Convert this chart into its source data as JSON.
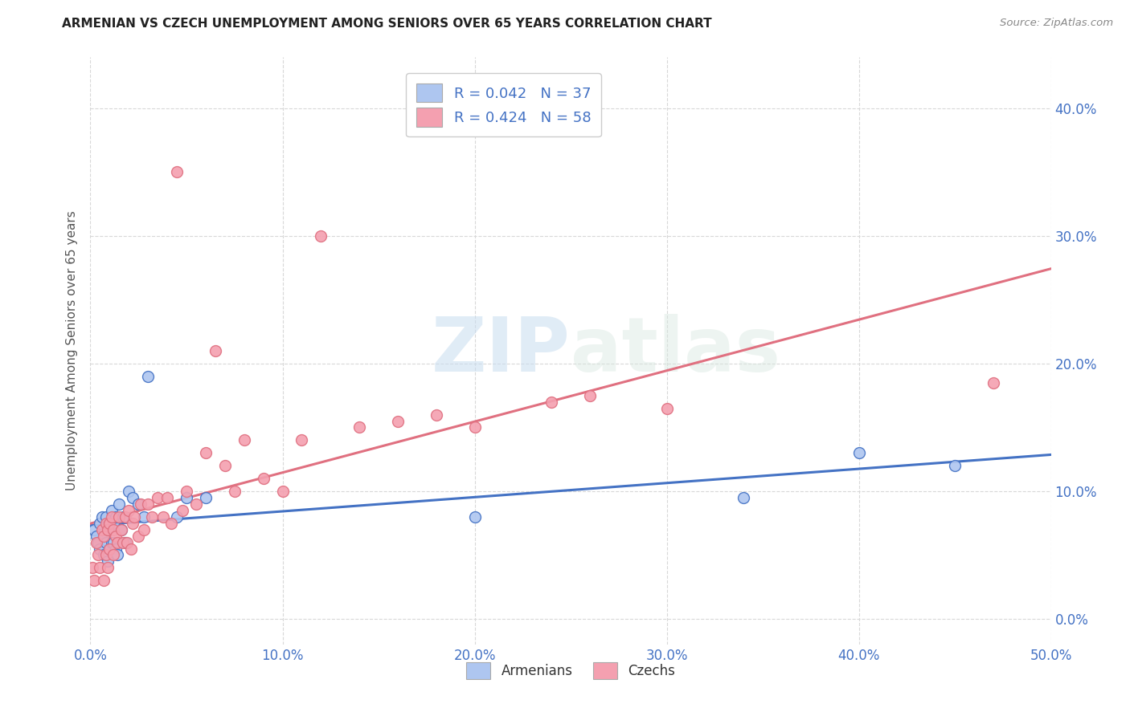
{
  "title": "ARMENIAN VS CZECH UNEMPLOYMENT AMONG SENIORS OVER 65 YEARS CORRELATION CHART",
  "source": "Source: ZipAtlas.com",
  "ylabel": "Unemployment Among Seniors over 65 years",
  "xlim": [
    0.0,
    0.5
  ],
  "ylim": [
    -0.02,
    0.44
  ],
  "xticks": [
    0.0,
    0.1,
    0.2,
    0.3,
    0.4,
    0.5
  ],
  "yticks": [
    0.0,
    0.1,
    0.2,
    0.3,
    0.4
  ],
  "xtick_labels": [
    "0.0%",
    "10.0%",
    "20.0%",
    "30.0%",
    "40.0%",
    "50.0%"
  ],
  "right_ytick_labels": [
    "0.0%",
    "10.0%",
    "20.0%",
    "30.0%",
    "40.0%"
  ],
  "armenian_color": "#aec6f0",
  "czech_color": "#f4a0b0",
  "armenian_line_color": "#4472c4",
  "czech_line_color": "#e07080",
  "watermark_zip": "ZIP",
  "watermark_atlas": "atlas",
  "background_color": "#ffffff",
  "grid_color": "#d8d8d8",
  "title_color": "#222222",
  "axis_color": "#4472c4",
  "armenian_x": [
    0.002,
    0.003,
    0.004,
    0.005,
    0.005,
    0.006,
    0.007,
    0.007,
    0.008,
    0.008,
    0.009,
    0.009,
    0.01,
    0.01,
    0.011,
    0.011,
    0.012,
    0.012,
    0.013,
    0.013,
    0.014,
    0.015,
    0.016,
    0.017,
    0.018,
    0.02,
    0.022,
    0.025,
    0.028,
    0.03,
    0.045,
    0.05,
    0.06,
    0.2,
    0.34,
    0.4,
    0.45
  ],
  "armenian_y": [
    0.07,
    0.065,
    0.06,
    0.075,
    0.055,
    0.08,
    0.065,
    0.05,
    0.08,
    0.06,
    0.07,
    0.045,
    0.075,
    0.055,
    0.085,
    0.06,
    0.075,
    0.06,
    0.08,
    0.055,
    0.05,
    0.09,
    0.07,
    0.08,
    0.06,
    0.1,
    0.095,
    0.09,
    0.08,
    0.19,
    0.08,
    0.095,
    0.095,
    0.08,
    0.095,
    0.13,
    0.12
  ],
  "czech_x": [
    0.001,
    0.002,
    0.003,
    0.004,
    0.005,
    0.006,
    0.007,
    0.007,
    0.008,
    0.008,
    0.009,
    0.009,
    0.01,
    0.01,
    0.011,
    0.012,
    0.012,
    0.013,
    0.014,
    0.015,
    0.016,
    0.017,
    0.018,
    0.019,
    0.02,
    0.021,
    0.022,
    0.023,
    0.025,
    0.026,
    0.028,
    0.03,
    0.032,
    0.035,
    0.038,
    0.04,
    0.042,
    0.045,
    0.048,
    0.05,
    0.055,
    0.06,
    0.065,
    0.07,
    0.075,
    0.08,
    0.09,
    0.1,
    0.11,
    0.12,
    0.14,
    0.16,
    0.18,
    0.2,
    0.24,
    0.26,
    0.3,
    0.47
  ],
  "czech_y": [
    0.04,
    0.03,
    0.06,
    0.05,
    0.04,
    0.07,
    0.065,
    0.03,
    0.075,
    0.05,
    0.07,
    0.04,
    0.075,
    0.055,
    0.08,
    0.07,
    0.05,
    0.065,
    0.06,
    0.08,
    0.07,
    0.06,
    0.08,
    0.06,
    0.085,
    0.055,
    0.075,
    0.08,
    0.065,
    0.09,
    0.07,
    0.09,
    0.08,
    0.095,
    0.08,
    0.095,
    0.075,
    0.35,
    0.085,
    0.1,
    0.09,
    0.13,
    0.21,
    0.12,
    0.1,
    0.14,
    0.11,
    0.1,
    0.14,
    0.3,
    0.15,
    0.155,
    0.16,
    0.15,
    0.17,
    0.175,
    0.165,
    0.185
  ]
}
